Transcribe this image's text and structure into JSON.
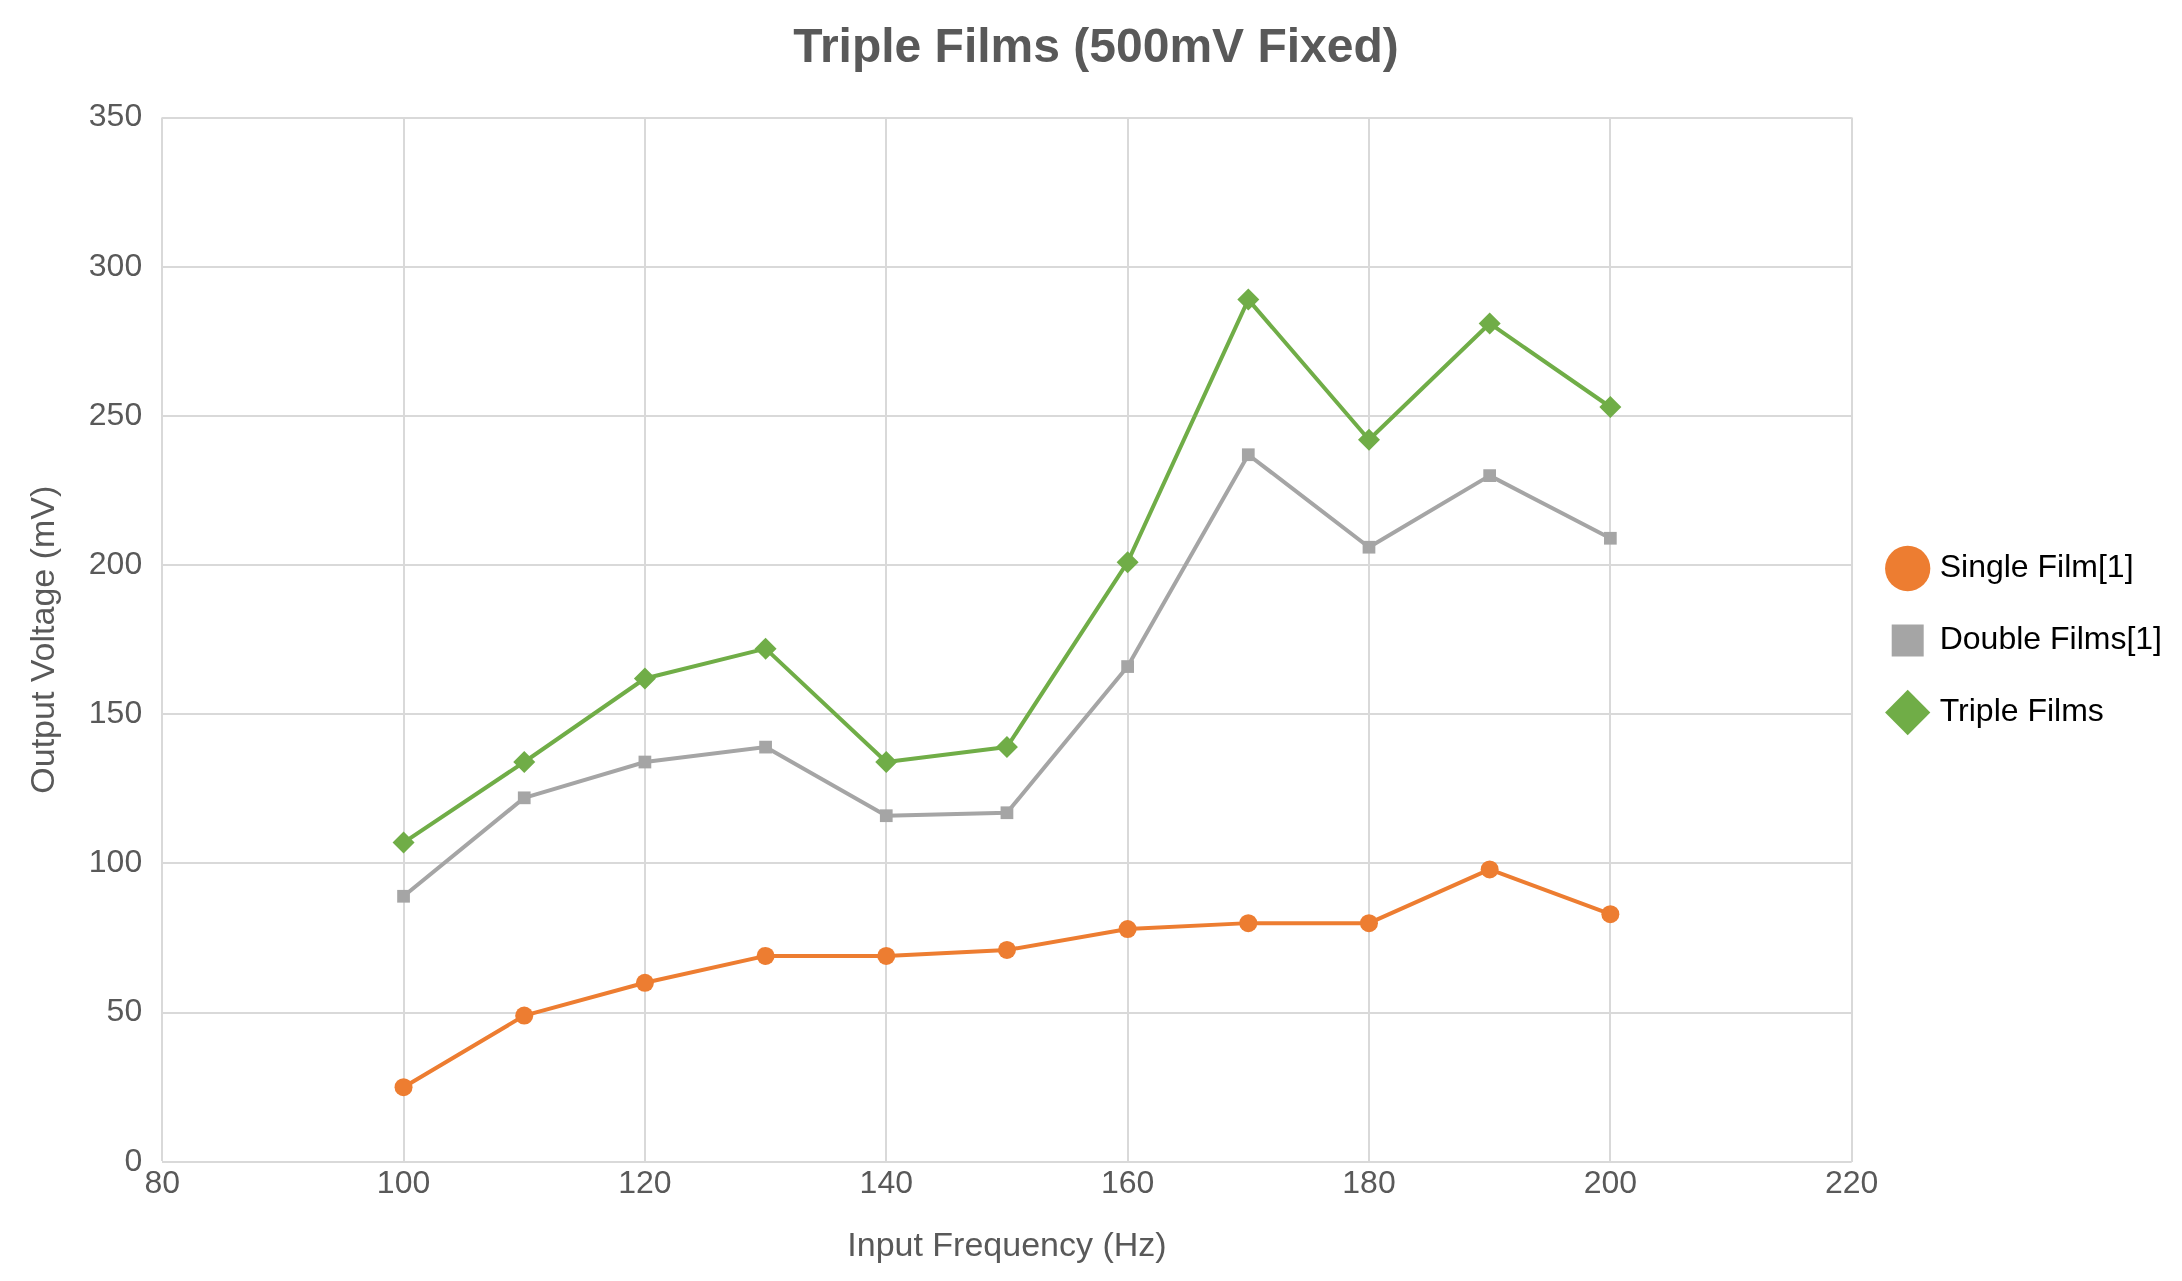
{
  "chart_data": {
    "type": "line",
    "title": "Triple Films (500mV Fixed)",
    "xlabel": "Input Frequency (Hz)",
    "ylabel": "Output Voltage (mV)",
    "x": [
      100,
      110,
      120,
      130,
      140,
      150,
      160,
      170,
      180,
      190,
      200
    ],
    "series": [
      {
        "name": "Single Film[1]",
        "color": "#ed7d31",
        "marker": "circle",
        "values": [
          25,
          49,
          60,
          69,
          69,
          71,
          78,
          80,
          80,
          98,
          83
        ]
      },
      {
        "name": "Double Films[1]",
        "color": "#a5a5a5",
        "marker": "square",
        "values": [
          89,
          122,
          134,
          139,
          116,
          117,
          166,
          237,
          206,
          230,
          209
        ]
      },
      {
        "name": "Triple Films",
        "color": "#70ad47",
        "marker": "diamond",
        "values": [
          107,
          134,
          162,
          172,
          134,
          139,
          201,
          289,
          242,
          281,
          253
        ]
      }
    ],
    "xlim": [
      80,
      220
    ],
    "xticks": [
      80,
      100,
      120,
      140,
      160,
      180,
      200,
      220
    ],
    "ylim": [
      0,
      350
    ],
    "yticks": [
      0,
      50,
      100,
      150,
      200,
      250,
      300,
      350
    ],
    "grid": true,
    "legend": "right",
    "line_style": "solid"
  }
}
